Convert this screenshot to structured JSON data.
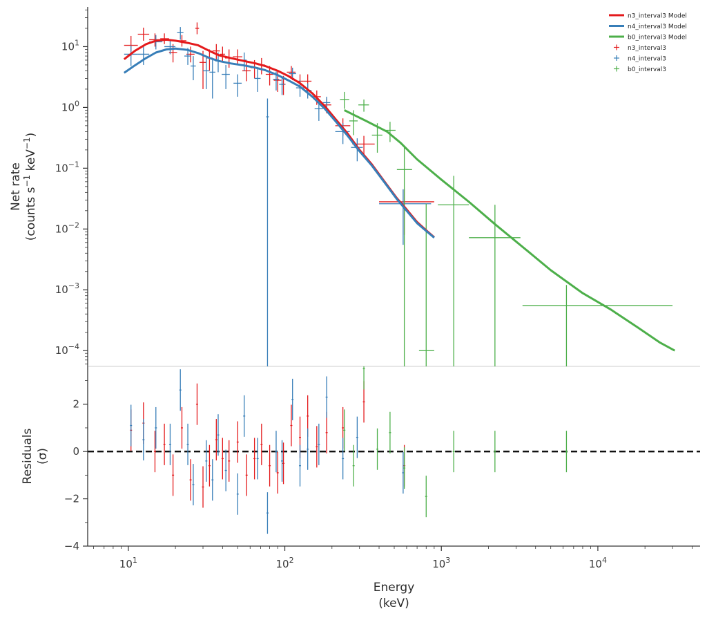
{
  "chart_data": {
    "type": "scatter",
    "xscale": "log",
    "xlim": [
      5.5,
      45000
    ],
    "xlabel": [
      "Energy",
      "(keV)"
    ],
    "xticks": [
      10,
      100,
      1000,
      10000
    ],
    "xtick_labels": [
      [
        "10",
        "1"
      ],
      [
        "10",
        "2"
      ],
      [
        "10",
        "3"
      ],
      [
        "10",
        "4"
      ]
    ],
    "top_panel": {
      "yscale": "log",
      "ylim": [
        5.5e-05,
        45
      ],
      "ylabel": [
        "Net rate",
        "(counts s",
        "−1",
        " keV",
        "−1",
        ")"
      ],
      "yticks": [
        0.0001,
        0.001,
        0.01,
        0.1,
        1,
        10
      ],
      "ytick_labels": [
        [
          "10",
          "−4"
        ],
        [
          "10",
          "−3"
        ],
        [
          "10",
          "−2"
        ],
        [
          "10",
          "−1"
        ],
        [
          "10",
          "0"
        ],
        [
          "10",
          "1"
        ]
      ]
    },
    "bottom_panel": {
      "ylim": [
        -4,
        3.6
      ],
      "ylabel": [
        "Residuals",
        "(σ)"
      ],
      "yticks": [
        -4,
        -2,
        0,
        2
      ],
      "ytick_labels": [
        "−4",
        "−2",
        "0",
        "2"
      ],
      "zero_line": true
    },
    "legend": {
      "position": "top-right",
      "models": [
        {
          "label": "n3_interval3 Model",
          "color": "#e41a1c"
        },
        {
          "label": "n4_interval3 Model",
          "color": "#377eb8"
        },
        {
          "label": "b0_interval3 Model",
          "color": "#4daf4a"
        }
      ],
      "data": [
        {
          "label": "n3_interval3",
          "color": "#e41a1c"
        },
        {
          "label": "n4_interval3",
          "color": "#377eb8"
        },
        {
          "label": "b0_interval3",
          "color": "#4daf4a"
        }
      ]
    },
    "models": [
      {
        "name": "n3_interval3 Model",
        "color": "#e41a1c",
        "points": [
          [
            9.4,
            6.2
          ],
          [
            11,
            8.5
          ],
          [
            13,
            11
          ],
          [
            15,
            12.5
          ],
          [
            17.5,
            13
          ],
          [
            20,
            12.5
          ],
          [
            24,
            11.5
          ],
          [
            28,
            10.5
          ],
          [
            33,
            8.5
          ],
          [
            38,
            7.2
          ],
          [
            45,
            6.5
          ],
          [
            55,
            5.8
          ],
          [
            65,
            5.3
          ],
          [
            75,
            4.8
          ],
          [
            90,
            4.0
          ],
          [
            105,
            3.3
          ],
          [
            125,
            2.5
          ],
          [
            150,
            1.7
          ],
          [
            180,
            1.05
          ],
          [
            210,
            0.65
          ],
          [
            250,
            0.38
          ],
          [
            300,
            0.2
          ],
          [
            360,
            0.115
          ],
          [
            430,
            0.062
          ],
          [
            520,
            0.032
          ],
          [
            600,
            0.021
          ],
          [
            700,
            0.013
          ],
          [
            800,
            0.0095
          ],
          [
            900,
            0.0073
          ]
        ]
      },
      {
        "name": "n4_interval3 Model",
        "color": "#377eb8",
        "points": [
          [
            9.4,
            3.7
          ],
          [
            11,
            4.9
          ],
          [
            13,
            6.5
          ],
          [
            15,
            8.0
          ],
          [
            17.5,
            9.0
          ],
          [
            20,
            9.3
          ],
          [
            24,
            8.8
          ],
          [
            28,
            7.8
          ],
          [
            33,
            6.5
          ],
          [
            38,
            5.8
          ],
          [
            45,
            5.3
          ],
          [
            55,
            4.9
          ],
          [
            65,
            4.5
          ],
          [
            75,
            4.1
          ],
          [
            90,
            3.4
          ],
          [
            105,
            2.8
          ],
          [
            125,
            2.2
          ],
          [
            150,
            1.5
          ],
          [
            180,
            0.95
          ],
          [
            210,
            0.6
          ],
          [
            250,
            0.35
          ],
          [
            300,
            0.19
          ],
          [
            360,
            0.11
          ],
          [
            430,
            0.06
          ],
          [
            520,
            0.031
          ],
          [
            600,
            0.02
          ],
          [
            700,
            0.0125
          ],
          [
            800,
            0.0093
          ],
          [
            900,
            0.0072
          ]
        ]
      },
      {
        "name": "b0_interval3 Model",
        "color": "#4daf4a",
        "points": [
          [
            240,
            0.9
          ],
          [
            330,
            0.6
          ],
          [
            450,
            0.4
          ],
          [
            550,
            0.26
          ],
          [
            700,
            0.14
          ],
          [
            1000,
            0.065
          ],
          [
            1500,
            0.028
          ],
          [
            2200,
            0.012
          ],
          [
            3500,
            0.0045
          ],
          [
            5000,
            0.0021
          ],
          [
            8000,
            0.00088
          ],
          [
            12000,
            0.00048
          ],
          [
            18000,
            0.00024
          ],
          [
            25000,
            0.000135
          ],
          [
            31000,
            0.0001
          ]
        ]
      }
    ],
    "series": [
      {
        "name": "n3_interval3",
        "color": "#e41a1c",
        "points": [
          {
            "x": 10.4,
            "xlo": 9.4,
            "xhi": 11.5,
            "y": 10.5,
            "ylo": 7.0,
            "yhi": 15.0,
            "res": 0.9
          },
          {
            "x": 12.5,
            "xlo": 11.5,
            "xhi": 13.6,
            "y": 16.0,
            "ylo": 12.5,
            "yhi": 20.5,
            "res": 1.2
          },
          {
            "x": 14.8,
            "xlo": 13.6,
            "xhi": 16.0,
            "y": 13.0,
            "ylo": 10.0,
            "yhi": 16.5,
            "res": 0.0
          },
          {
            "x": 17.0,
            "xlo": 16.0,
            "xhi": 18.2,
            "y": 13.5,
            "ylo": 11.0,
            "yhi": 16.5,
            "res": 0.3
          },
          {
            "x": 19.3,
            "xlo": 18.2,
            "xhi": 20.5,
            "y": 8.0,
            "ylo": 5.5,
            "yhi": 11.0,
            "res": -1.0
          },
          {
            "x": 22.0,
            "xlo": 20.5,
            "xhi": 23.5,
            "y": 12.5,
            "ylo": 10.0,
            "yhi": 15.5,
            "res": 1.0
          },
          {
            "x": 25.0,
            "xlo": 23.5,
            "xhi": 26.5,
            "y": 7.5,
            "ylo": 5.5,
            "yhi": 10.0,
            "res": -1.2
          },
          {
            "x": 27.5,
            "xlo": 26.8,
            "xhi": 28.3,
            "y": 20.0,
            "ylo": 16.0,
            "yhi": 25.0,
            "res": 2.0
          },
          {
            "x": 30.0,
            "xlo": 28.5,
            "xhi": 31.5,
            "y": 5.5,
            "ylo": 2.0,
            "yhi": 8.5,
            "res": -1.5
          },
          {
            "x": 33.0,
            "xlo": 31.5,
            "xhi": 34.5,
            "y": 6.5,
            "ylo": 4.0,
            "yhi": 9.0,
            "res": -0.6
          },
          {
            "x": 36.5,
            "xlo": 34.5,
            "xhi": 38.5,
            "y": 8.5,
            "ylo": 6.0,
            "yhi": 11.0,
            "res": 0.5
          },
          {
            "x": 40.0,
            "xlo": 38.5,
            "xhi": 41.5,
            "y": 7.5,
            "ylo": 5.5,
            "yhi": 10.0,
            "res": -0.3
          },
          {
            "x": 44.0,
            "xlo": 41.5,
            "xhi": 46.5,
            "y": 6.5,
            "ylo": 4.5,
            "yhi": 9.0,
            "res": -0.4
          },
          {
            "x": 50.0,
            "xlo": 46.5,
            "xhi": 53.5,
            "y": 6.8,
            "ylo": 5.0,
            "yhi": 9.0,
            "res": 0.4
          },
          {
            "x": 57.0,
            "xlo": 53.5,
            "xhi": 60.5,
            "y": 4.0,
            "ylo": 2.7,
            "yhi": 5.5,
            "res": -1.0
          },
          {
            "x": 64.0,
            "xlo": 60.5,
            "xhi": 67.5,
            "y": 4.5,
            "ylo": 3.0,
            "yhi": 6.0,
            "res": -0.3
          },
          {
            "x": 71.0,
            "xlo": 67.5,
            "xhi": 74.5,
            "y": 5.0,
            "ylo": 3.5,
            "yhi": 6.5,
            "res": 0.3
          },
          {
            "x": 80.0,
            "xlo": 75.5,
            "xhi": 84.5,
            "y": 3.5,
            "ylo": 2.3,
            "yhi": 4.8,
            "res": -0.6
          },
          {
            "x": 90.0,
            "xlo": 85.0,
            "xhi": 95.0,
            "y": 2.8,
            "ylo": 1.8,
            "yhi": 3.9,
            "res": -0.9
          },
          {
            "x": 98.0,
            "xlo": 95.0,
            "xhi": 101.0,
            "y": 2.4,
            "ylo": 1.6,
            "yhi": 3.3,
            "res": -0.5
          },
          {
            "x": 110.0,
            "xlo": 103.0,
            "xhi": 117.0,
            "y": 3.8,
            "ylo": 3.0,
            "yhi": 4.8,
            "res": 1.1
          },
          {
            "x": 125.0,
            "xlo": 118.0,
            "xhi": 132.0,
            "y": 2.7,
            "ylo": 2.0,
            "yhi": 3.5,
            "res": 0.6
          },
          {
            "x": 140.0,
            "xlo": 132.0,
            "xhi": 148.0,
            "y": 2.7,
            "ylo": 2.1,
            "yhi": 3.5,
            "res": 1.5
          },
          {
            "x": 160.0,
            "xlo": 150.0,
            "xhi": 170.0,
            "y": 1.5,
            "ylo": 1.1,
            "yhi": 1.9,
            "res": 0.2
          },
          {
            "x": 185.0,
            "xlo": 172.0,
            "xhi": 198.0,
            "y": 1.1,
            "ylo": 0.8,
            "yhi": 1.4,
            "res": 0.8
          },
          {
            "x": 235.0,
            "xlo": 210.0,
            "xhi": 262.0,
            "y": 0.5,
            "ylo": 0.34,
            "yhi": 0.66,
            "res": 1.0
          },
          {
            "x": 320.0,
            "xlo": 270.0,
            "xhi": 375.0,
            "y": 0.25,
            "ylo": 0.16,
            "yhi": 0.34,
            "res": 2.1
          },
          {
            "x": 580.0,
            "xlo": 400.0,
            "xhi": 900.0,
            "y": 0.028,
            "ylo": 0.008,
            "yhi": 0.045,
            "res": -0.6
          }
        ]
      },
      {
        "name": "n4_interval3",
        "color": "#377eb8",
        "points": [
          {
            "x": 10.4,
            "xlo": 9.4,
            "xhi": 11.5,
            "y": 7.5,
            "ylo": 4.8,
            "yhi": 10.5,
            "res": 1.1
          },
          {
            "x": 12.5,
            "xlo": 11.5,
            "xhi": 13.6,
            "y": 7.5,
            "ylo": 5.0,
            "yhi": 10.0,
            "res": 0.5
          },
          {
            "x": 15.0,
            "xlo": 13.6,
            "xhi": 16.5,
            "y": 12.0,
            "ylo": 9.0,
            "yhi": 15.5,
            "res": 1.0
          },
          {
            "x": 18.5,
            "xlo": 17.0,
            "xhi": 20.0,
            "y": 10.0,
            "ylo": 7.5,
            "yhi": 13.0,
            "res": 0.3
          },
          {
            "x": 21.5,
            "xlo": 20.5,
            "xhi": 22.5,
            "y": 17.0,
            "ylo": 13.0,
            "yhi": 21.0,
            "res": 2.6
          },
          {
            "x": 24.0,
            "xlo": 22.8,
            "xhi": 25.2,
            "y": 7.0,
            "ylo": 5.0,
            "yhi": 9.5,
            "res": 0.3
          },
          {
            "x": 26.0,
            "xlo": 25.0,
            "xhi": 27.0,
            "y": 4.8,
            "ylo": 2.8,
            "yhi": 7.0,
            "res": -1.4
          },
          {
            "x": 31.5,
            "xlo": 30.0,
            "xhi": 33.0,
            "y": 4.0,
            "ylo": 2.0,
            "yhi": 6.5,
            "res": -0.4
          },
          {
            "x": 34.5,
            "xlo": 33.0,
            "xhi": 36.0,
            "y": 3.8,
            "ylo": 1.4,
            "yhi": 6.0,
            "res": -1.2
          },
          {
            "x": 37.5,
            "xlo": 36.0,
            "xhi": 39.0,
            "y": 5.8,
            "ylo": 3.8,
            "yhi": 8.0,
            "res": 0.7
          },
          {
            "x": 42.0,
            "xlo": 39.5,
            "xhi": 44.5,
            "y": 3.5,
            "ylo": 2.0,
            "yhi": 5.0,
            "res": -0.8
          },
          {
            "x": 50.0,
            "xlo": 47.0,
            "xhi": 53.0,
            "y": 2.5,
            "ylo": 1.5,
            "yhi": 3.5,
            "res": -1.8
          },
          {
            "x": 55.0,
            "xlo": 53.0,
            "xhi": 57.0,
            "y": 6.0,
            "ylo": 4.0,
            "yhi": 8.0,
            "res": 1.5
          },
          {
            "x": 67.0,
            "xlo": 64.0,
            "xhi": 70.0,
            "y": 3.0,
            "ylo": 1.8,
            "yhi": 4.3,
            "res": -0.3
          },
          {
            "x": 77.5,
            "xlo": 76.0,
            "xhi": 79.0,
            "y": 0.7,
            "ylo": 1e-05,
            "yhi": 1.4,
            "res": -2.6
          },
          {
            "x": 88.0,
            "xlo": 84.0,
            "xhi": 92.0,
            "y": 2.9,
            "ylo": 1.9,
            "yhi": 3.9,
            "res": 0.0
          },
          {
            "x": 96.0,
            "xlo": 92.0,
            "xhi": 100.0,
            "y": 2.4,
            "ylo": 1.6,
            "yhi": 3.2,
            "res": -0.4
          },
          {
            "x": 112.0,
            "xlo": 106.0,
            "xhi": 118.0,
            "y": 3.6,
            "ylo": 2.8,
            "yhi": 4.5,
            "res": 2.2
          },
          {
            "x": 125.0,
            "xlo": 118.0,
            "xhi": 132.0,
            "y": 2.1,
            "ylo": 1.5,
            "yhi": 2.8,
            "res": -0.6
          },
          {
            "x": 140.0,
            "xlo": 132.0,
            "xhi": 148.0,
            "y": 1.9,
            "ylo": 1.4,
            "yhi": 2.5,
            "res": 0.1
          },
          {
            "x": 165.0,
            "xlo": 155.0,
            "xhi": 175.0,
            "y": 0.95,
            "ylo": 0.6,
            "yhi": 1.3,
            "res": 0.3
          },
          {
            "x": 185.0,
            "xlo": 175.0,
            "xhi": 195.0,
            "y": 1.2,
            "ylo": 0.9,
            "yhi": 1.5,
            "res": 2.3
          },
          {
            "x": 235.0,
            "xlo": 210.0,
            "xhi": 260.0,
            "y": 0.4,
            "ylo": 0.25,
            "yhi": 0.55,
            "res": -0.3
          },
          {
            "x": 290.0,
            "xlo": 265.0,
            "xhi": 315.0,
            "y": 0.22,
            "ylo": 0.13,
            "yhi": 0.31,
            "res": 0.6
          },
          {
            "x": 570.0,
            "xlo": 400.0,
            "xhi": 860.0,
            "y": 0.026,
            "ylo": 0.0055,
            "yhi": 0.045,
            "res": -0.9
          }
        ]
      },
      {
        "name": "b0_interval3",
        "color": "#4daf4a",
        "points": [
          {
            "x": 240.0,
            "xlo": 225.0,
            "xhi": 258.0,
            "y": 1.35,
            "ylo": 0.95,
            "yhi": 1.8,
            "res": 0.9
          },
          {
            "x": 275.0,
            "xlo": 258.0,
            "xhi": 292.0,
            "y": 0.6,
            "ylo": 0.35,
            "yhi": 0.9,
            "res": -0.6
          },
          {
            "x": 320.0,
            "xlo": 295.0,
            "xhi": 345.0,
            "y": 1.1,
            "ylo": 0.85,
            "yhi": 1.35,
            "res": 3.5
          },
          {
            "x": 390.0,
            "xlo": 360.0,
            "xhi": 420.0,
            "y": 0.35,
            "ylo": 0.18,
            "yhi": 0.55,
            "res": 0.1
          },
          {
            "x": 470.0,
            "xlo": 430.0,
            "xhi": 510.0,
            "y": 0.42,
            "ylo": 0.27,
            "yhi": 0.58,
            "res": 0.8
          },
          {
            "x": 580.0,
            "xlo": 520.0,
            "xhi": 650.0,
            "y": 0.095,
            "ylo": 1e-05,
            "yhi": 0.22,
            "res": -0.7
          },
          {
            "x": 800.0,
            "xlo": 720.0,
            "xhi": 900.0,
            "y": 0.0001,
            "ylo": 1e-05,
            "yhi": 0.026,
            "res": -1.9
          },
          {
            "x": 1200.0,
            "xlo": 950.0,
            "xhi": 1500.0,
            "y": 0.025,
            "ylo": 1e-05,
            "yhi": 0.075,
            "res": 0.0
          },
          {
            "x": 2200.0,
            "xlo": 1500.0,
            "xhi": 3200.0,
            "y": 0.0072,
            "ylo": 1e-05,
            "yhi": 0.025,
            "res": 0.0
          },
          {
            "x": 6300.0,
            "xlo": 3300.0,
            "xhi": 30000.0,
            "y": 0.00055,
            "ylo": 1e-05,
            "yhi": 0.0012,
            "res": 0.0
          }
        ]
      }
    ]
  }
}
